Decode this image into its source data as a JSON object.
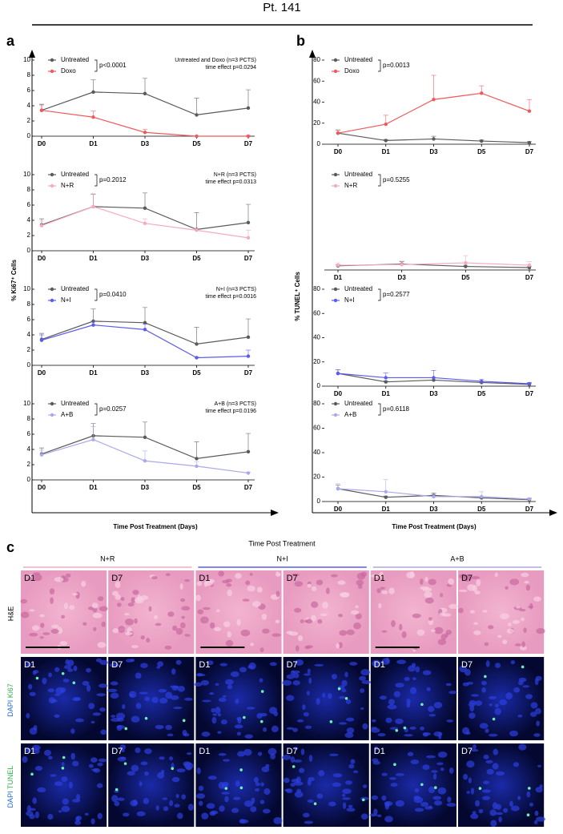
{
  "title": "Pt. 141",
  "panel_labels": [
    "a",
    "b",
    "c"
  ],
  "panel_a": {
    "ylabel": "% Ki67⁺ Cells",
    "xlabel": "Time Post Treatment (Days)"
  },
  "panel_b": {
    "ylabel": "% TUNEL⁺ Cells",
    "xlabel": "Time Post Treatment (Days)"
  },
  "chart_data": [
    {
      "type": "line",
      "categories": [
        "D0",
        "D1",
        "D3",
        "D5",
        "D7"
      ],
      "ylim": [
        0,
        10
      ],
      "yticks": [
        0,
        2,
        4,
        6,
        8,
        10
      ],
      "series": [
        {
          "name": "Untreated",
          "color": "#5a5a5a",
          "values": [
            3.4,
            5.8,
            5.6,
            2.8,
            3.7
          ],
          "errors": [
            0.8,
            1.6,
            2.0,
            2.2,
            2.4
          ]
        },
        {
          "name": "Doxo",
          "color": "#f0595c",
          "values": [
            3.4,
            2.5,
            0.5,
            0,
            0
          ],
          "errors": [
            0.7,
            0.8,
            0.4,
            0,
            0.1
          ]
        }
      ],
      "p_value": "p<0.0001",
      "annotations": [
        "Untreated and Doxo (n=3 PCTS)",
        "time effect p=0.0294"
      ]
    },
    {
      "type": "line",
      "categories": [
        "D0",
        "D1",
        "D3",
        "D5",
        "D7"
      ],
      "ylim": [
        0,
        10
      ],
      "yticks": [
        0,
        2,
        4,
        6,
        8,
        10
      ],
      "series": [
        {
          "name": "Untreated",
          "color": "#5a5a5a",
          "values": [
            3.4,
            5.8,
            5.6,
            2.8,
            3.7
          ],
          "errors": [
            0.8,
            1.6,
            2.0,
            2.2,
            2.4
          ]
        },
        {
          "name": "N+R",
          "color": "#f5a9c4",
          "values": [
            3.3,
            5.8,
            3.6,
            2.7,
            1.7
          ],
          "errors": [
            0.6,
            1.7,
            0.6,
            0.2,
            1.0
          ]
        }
      ],
      "p_value": "p=0.2012",
      "annotations": [
        "N+R (n=3 PCTS)",
        "time effect p=0.0313"
      ]
    },
    {
      "type": "line",
      "categories": [
        "D0",
        "D1",
        "D3",
        "D5",
        "D7"
      ],
      "ylim": [
        0,
        10
      ],
      "yticks": [
        0,
        2,
        4,
        6,
        8,
        10
      ],
      "series": [
        {
          "name": "Untreated",
          "color": "#5a5a5a",
          "values": [
            3.4,
            5.8,
            5.6,
            2.8,
            3.7
          ],
          "errors": [
            0.8,
            1.6,
            2.0,
            2.2,
            2.4
          ]
        },
        {
          "name": "N+I",
          "color": "#5b5bf0",
          "values": [
            3.3,
            5.3,
            4.7,
            1.0,
            1.2
          ],
          "errors": [
            0.7,
            0.5,
            0.7,
            0.1,
            0.8
          ]
        }
      ],
      "p_value": "p=0.0410",
      "annotations": [
        "N+I (n=3 PCTS)",
        "time effect p=0.0016"
      ]
    },
    {
      "type": "line",
      "categories": [
        "D0",
        "D1",
        "D3",
        "D5",
        "D7"
      ],
      "ylim": [
        0,
        10
      ],
      "yticks": [
        0,
        2,
        4,
        6,
        8,
        10
      ],
      "series": [
        {
          "name": "Untreated",
          "color": "#5a5a5a",
          "values": [
            3.4,
            5.8,
            5.6,
            2.8,
            3.7
          ],
          "errors": [
            0.8,
            1.6,
            2.0,
            2.2,
            2.4
          ]
        },
        {
          "name": "A+B",
          "color": "#a9a9ec",
          "values": [
            3.3,
            5.3,
            2.5,
            1.8,
            0.9
          ],
          "errors": [
            0.6,
            1.7,
            1.3,
            0.6,
            0.1
          ]
        }
      ],
      "p_value": "p=0.0257",
      "annotations": [
        "A+B (n=3 PCTS)",
        "time effect p=0.0196"
      ]
    },
    {
      "type": "line",
      "categories": [
        "D0",
        "D1",
        "D3",
        "D5",
        "D7"
      ],
      "ylim": [
        0,
        80
      ],
      "yticks": [
        0,
        20,
        40,
        60,
        80
      ],
      "series": [
        {
          "name": "Untreated",
          "color": "#5a5a5a",
          "values": [
            10.5,
            3.5,
            5,
            3,
            1.5
          ],
          "errors": [
            3,
            1,
            2.5,
            1,
            1
          ]
        },
        {
          "name": "Doxo",
          "color": "#f0595c",
          "values": [
            10.5,
            19,
            42.5,
            48.5,
            31.5
          ],
          "errors": [
            3,
            8.5,
            23,
            7,
            11
          ]
        }
      ],
      "p_value": "p=0.0013"
    },
    {
      "type": "line",
      "categories": [
        "D1",
        "D3",
        "D5",
        "D7"
      ],
      "ylim": [
        0,
        80
      ],
      "series": [
        {
          "name": "Untreated",
          "color": "#5a5a5a",
          "values": [
            3.5,
            5,
            3,
            2
          ],
          "errors": [
            1,
            2,
            1,
            1
          ]
        },
        {
          "name": "N+R",
          "color": "#f5a9c4",
          "values": [
            4,
            4.5,
            6,
            4
          ],
          "errors": [
            2,
            3,
            6,
            3
          ]
        }
      ],
      "p_value": "p=0.5255"
    },
    {
      "type": "line",
      "categories": [
        "D0",
        "D1",
        "D3",
        "D5",
        "D7"
      ],
      "ylim": [
        0,
        80
      ],
      "yticks": [
        0,
        20,
        40,
        60,
        80
      ],
      "series": [
        {
          "name": "Untreated",
          "color": "#5a5a5a",
          "values": [
            10.5,
            3.5,
            5,
            3,
            1.5
          ],
          "errors": [
            3,
            1,
            2,
            1,
            1
          ]
        },
        {
          "name": "N+I",
          "color": "#5b5bf0",
          "values": [
            10.5,
            7,
            7,
            4,
            2
          ],
          "errors": [
            3,
            4,
            6,
            1.5,
            1
          ]
        }
      ],
      "p_value": "p=0.2577"
    },
    {
      "type": "line",
      "categories": [
        "D0",
        "D1",
        "D3",
        "D5",
        "D7"
      ],
      "ylim": [
        0,
        80
      ],
      "yticks": [
        0,
        20,
        40,
        60,
        80
      ],
      "series": [
        {
          "name": "Untreated",
          "color": "#5a5a5a",
          "values": [
            10.5,
            3.5,
            5,
            3,
            1.5
          ],
          "errors": [
            3,
            1,
            2,
            1,
            1
          ]
        },
        {
          "name": "A+B",
          "color": "#a9a9ec",
          "values": [
            10.5,
            8,
            4,
            4,
            2
          ],
          "errors": [
            4,
            10,
            2,
            4,
            1
          ]
        }
      ],
      "p_value": "p=0.6118"
    }
  ],
  "panel_c": {
    "title": "Time Post Treatment",
    "groups": [
      {
        "name": "N+R",
        "color": "#f5a9c4"
      },
      {
        "name": "N+I",
        "color": "#5b5bf0"
      },
      {
        "name": "A+B",
        "color": "#a9a9ec"
      }
    ],
    "days": [
      "D1",
      "D7"
    ],
    "rows": [
      {
        "stain": "H&E"
      },
      {
        "counter": "DAPI",
        "marker": "Ki67"
      },
      {
        "counter": "DAPI",
        "marker": "TUNEL"
      }
    ]
  }
}
